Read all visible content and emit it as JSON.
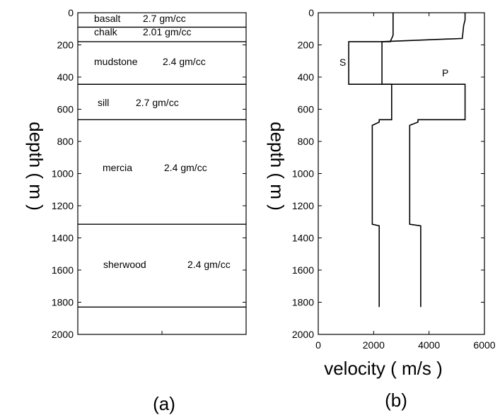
{
  "chart_data": [
    {
      "type": "layered-column",
      "panel": "(a)",
      "ylabel": "depth ( m )",
      "ylim": [
        0,
        2000
      ],
      "yticks": [
        "0",
        "200",
        "400",
        "600",
        "800",
        "1000",
        "1200",
        "1400",
        "1600",
        "1800",
        "2000"
      ],
      "boundaries": [
        0,
        90,
        180,
        445,
        665,
        1315,
        1830
      ],
      "layers": [
        {
          "name": "basalt",
          "density": "2.7 gm/cc",
          "top": 0,
          "bottom": 90
        },
        {
          "name": "chalk",
          "density": "2.01 gm/cc",
          "top": 90,
          "bottom": 180
        },
        {
          "name": "mudstone",
          "density": "2.4 gm/cc",
          "top": 180,
          "bottom": 445
        },
        {
          "name": "sill",
          "density": "2.7 gm/cc",
          "top": 445,
          "bottom": 665
        },
        {
          "name": "mercia",
          "density": "2.4 gm/cc",
          "top": 665,
          "bottom": 1315
        },
        {
          "name": "sherwood",
          "density": "2.4 gm/cc",
          "top": 1315,
          "bottom": 1830
        }
      ]
    },
    {
      "type": "line",
      "panel": "(b)",
      "xlabel": "velocity ( m/s )",
      "ylabel": "depth ( m )",
      "xlim": [
        0,
        6000
      ],
      "ylim": [
        0,
        2000
      ],
      "xticks": [
        "0",
        "2000",
        "4000",
        "6000"
      ],
      "yticks": [
        "0",
        "200",
        "400",
        "600",
        "800",
        "1000",
        "1200",
        "1400",
        "1600",
        "1800",
        "2000"
      ],
      "series": [
        {
          "name": "S",
          "points": [
            [
              2700,
              0
            ],
            [
              2700,
              140
            ],
            [
              2650,
              160
            ],
            [
              2600,
              180
            ],
            [
              1100,
              180
            ],
            [
              1100,
              445
            ],
            [
              2650,
              445
            ],
            [
              2650,
              665
            ],
            [
              2200,
              665
            ],
            [
              2200,
              680
            ],
            [
              1950,
              700
            ],
            [
              1950,
              1315
            ],
            [
              2200,
              1325
            ],
            [
              2200,
              1830
            ]
          ]
        },
        {
          "name": "P",
          "points": [
            [
              5300,
              0
            ],
            [
              5300,
              45
            ],
            [
              5250,
              80
            ],
            [
              5200,
              160
            ],
            [
              2300,
              180
            ],
            [
              2300,
              445
            ],
            [
              5300,
              445
            ],
            [
              5300,
              665
            ],
            [
              3600,
              665
            ],
            [
              3600,
              680
            ],
            [
              3300,
              700
            ],
            [
              3300,
              1315
            ],
            [
              3700,
              1325
            ],
            [
              3700,
              1830
            ]
          ]
        }
      ]
    }
  ]
}
